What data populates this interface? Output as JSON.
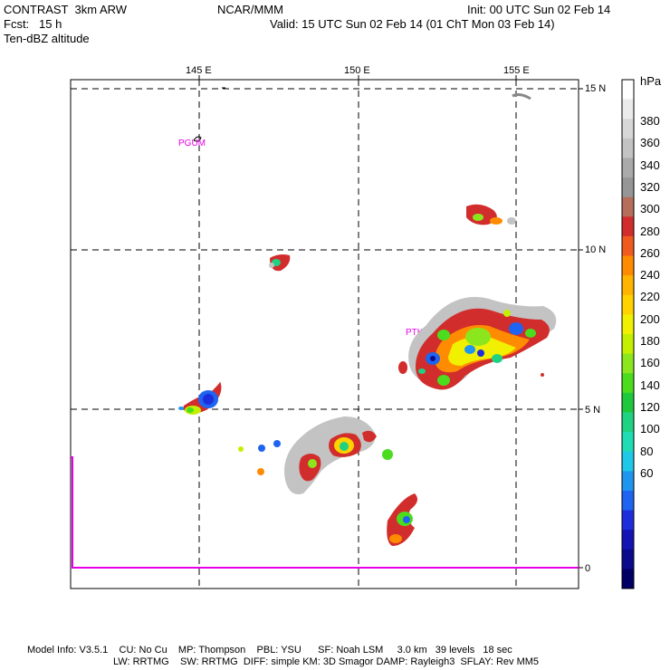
{
  "header": {
    "product": "CONTRAST",
    "model": "3km ARW",
    "org": "NCAR/MMM",
    "init": "Init: 00 UTC Sun 02 Feb 14",
    "fcst_label": "Fcst:",
    "fcst_value": "15 h",
    "valid": "Valid: 15 UTC Sun 02 Feb 14 (01 ChT Mon 03 Feb 14)",
    "field": "Ten-dBZ altitude"
  },
  "axes": {
    "lon_labels": [
      "145 E",
      "150 E",
      "155 E"
    ],
    "lat_labels": [
      "15 N",
      "10 N",
      "5 N",
      "0"
    ]
  },
  "stations": [
    "PGUM",
    "PTKK"
  ],
  "colorbar": {
    "unit": "hPa",
    "labels": [
      "380",
      "360",
      "340",
      "320",
      "300",
      "280",
      "260",
      "240",
      "220",
      "200",
      "180",
      "160",
      "140",
      "120",
      "100",
      "80",
      "60"
    ],
    "colors": [
      "#ffffff",
      "#ebebeb",
      "#d7d7d7",
      "#c3c3c3",
      "#aaaaaa",
      "#969696",
      "#b46e5a",
      "#d22d2d",
      "#f05a1e",
      "#ff8c00",
      "#ffb400",
      "#ffd200",
      "#f0f000",
      "#c3f000",
      "#8ce61e",
      "#4bdc1e",
      "#1ec83c",
      "#1ed282",
      "#1edcb4",
      "#1ec8e6",
      "#1e96f0",
      "#1e64f0",
      "#1e2ddc",
      "#1414b4",
      "#0a0a8c",
      "#000064"
    ]
  },
  "footer": {
    "line1": "Model Info: V3.5.1    CU: No Cu    MP: Thompson    PBL: YSU      SF: Noah LSM     3.0 km   39 levels   18 sec",
    "line2": "LW: RRTMG    SW: RRTMG  DIFF: simple KM: 3D Smagor DAMP: Rayleigh3  SFLAY: Rev MM5"
  }
}
